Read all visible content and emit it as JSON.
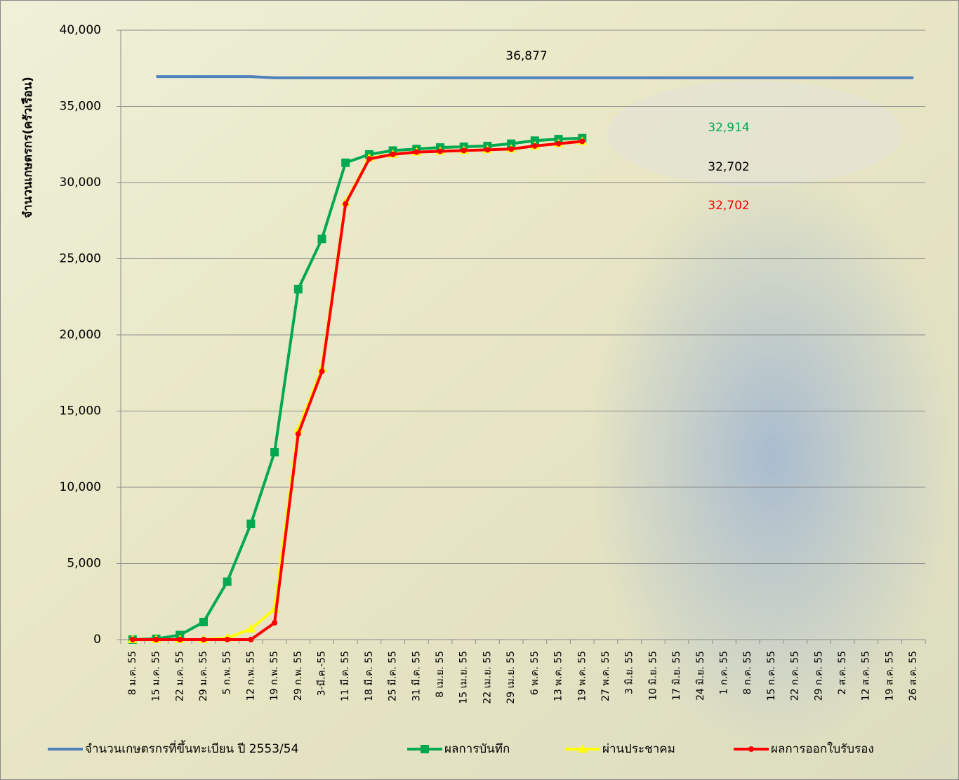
{
  "chart_data": {
    "type": "line",
    "y_label": "จำนวนเกษตรกร(ครัวเรือน)",
    "categories": [
      "8 ม.ค. 55",
      "15 ม.ค. 55",
      "22 ม.ค. 55",
      "29 ม.ค. 55",
      "5 ก.พ. 55",
      "12 ก.พ. 55",
      "19 ก.พ. 55",
      "29 ก.พ. 55",
      "3-มี.ค.-55",
      "11 มี.ค. 55",
      "18 มี.ค. 55",
      "25 มี.ค. 55",
      "31 มี.ค. 55",
      "8 เม.ย. 55",
      "15 เม.ย. 55",
      "22 เม.ย. 55",
      "29 เม.ย. 55",
      "6 พ.ค. 55",
      "13 พ.ค. 55",
      "19 พ.ค. 55",
      "27 พ.ค. 55",
      "3 มิ.ย. 55",
      "10 มิ.ย. 55",
      "17 มิ.ย. 55",
      "24 มิ.ย. 55",
      "1 ก.ค. 55",
      "8 ก.ค. 55",
      "15 ก.ค. 55",
      "22 ก.ค. 55",
      "29 ก.ค. 55",
      "2 ส.ค. 55",
      "12 ส.ค. 55",
      "19 ส.ค. 55",
      "26 ส.ค. 55"
    ],
    "series": [
      {
        "name": "จำนวนเกษตรกรที่ขึ้นทะเบียน ปี 2553/54",
        "color": "#4f81bd",
        "marker": "none",
        "values": [
          null,
          36950,
          36950,
          36950,
          36950,
          36950,
          36877,
          36877,
          36877,
          36877,
          36877,
          36877,
          36877,
          36877,
          36877,
          36877,
          36877,
          36877,
          36877,
          36877,
          36877,
          36877,
          36877,
          36877,
          36877,
          36877,
          36877,
          36877,
          36877,
          36877,
          36877,
          36877,
          36877,
          36877
        ]
      },
      {
        "name": "ผลการบันทึก",
        "color": "#00a94f",
        "marker": "square",
        "values": [
          0,
          50,
          300,
          1150,
          3800,
          7600,
          12300,
          23000,
          26300,
          31300,
          31850,
          32100,
          32200,
          32300,
          32350,
          32400,
          32550,
          32750,
          32850,
          32914,
          null,
          null,
          null,
          null,
          null,
          null,
          null,
          null,
          null,
          null,
          null,
          null,
          null,
          null
        ]
      },
      {
        "name": "ผ่านประชาคม",
        "color": "#ffff00",
        "marker": "triangle",
        "values": [
          0,
          0,
          0,
          0,
          100,
          700,
          2000,
          13800,
          17800,
          28700,
          31600,
          31850,
          32000,
          32050,
          32100,
          32150,
          32200,
          32400,
          32550,
          32702,
          null,
          null,
          null,
          null,
          null,
          null,
          null,
          null,
          null,
          null,
          null,
          null,
          null,
          null
        ]
      },
      {
        "name": "ผลการออกใบรับรอง",
        "color": "#ff0000",
        "marker": "circle",
        "values": [
          0,
          0,
          0,
          0,
          0,
          0,
          1100,
          13500,
          17600,
          28600,
          31550,
          31850,
          32000,
          32050,
          32100,
          32150,
          32200,
          32400,
          32550,
          32702,
          null,
          null,
          null,
          null,
          null,
          null,
          null,
          null,
          null,
          null,
          null,
          null,
          null,
          null
        ]
      }
    ],
    "annotations": [
      {
        "text": "36,877",
        "value": 36877,
        "color": "#000000"
      },
      {
        "text": "32,914",
        "value": 32914,
        "color": "#00a94f"
      },
      {
        "text": "32,702",
        "value": 32702,
        "color": "#000000"
      },
      {
        "text": "32,702",
        "value": 32702,
        "color": "#ff0000"
      }
    ],
    "ylim": [
      0,
      40000
    ],
    "yticks": [
      0,
      {
        "value": 5000,
        "label": "5,000"
      },
      {
        "value": 10000,
        "label": "10,000"
      },
      {
        "value": 15000,
        "label": "15,000"
      },
      {
        "value": 20000,
        "label": "20,000"
      },
      {
        "value": 25000,
        "label": "25,000"
      },
      {
        "value": 30000,
        "label": "30,000"
      },
      {
        "value": 35000,
        "label": "35,000"
      },
      {
        "value": 40000,
        "label": "40,000"
      }
    ],
    "grid": true,
    "legend": "bottom"
  }
}
